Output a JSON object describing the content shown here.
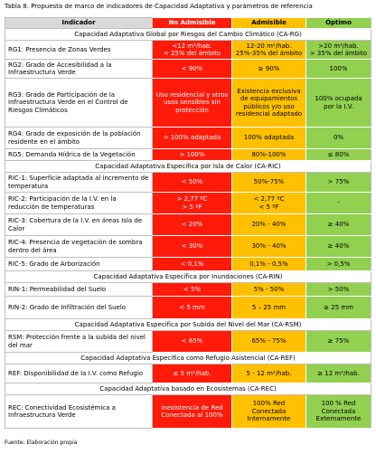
{
  "caption": "Tabla 8. Propuesta de marco de indicadores de Capacidad Adaptativa y parámetros de referencia",
  "table": {
    "header": [
      "Indicador",
      "No Admisible",
      "Admisible",
      "Óptimo"
    ],
    "sections": [
      {
        "title": "Capacidad Adaptativa Global por Riesgos del Cambio Climático (CA-RG)",
        "rows": [
          [
            "RG1: Presencia de Zonas Verdes",
            "<12 m²/hab.\n< 25% del ámbito",
            "12-20 m²/hab.\n25%-35% del ámbito",
            ">20 m²/hab.\n> 35% del ámbito"
          ],
          [
            "RG2: Grado de Accesibilidad a la Infraestructura Verde",
            "< 90%",
            "≥ 90%",
            "100%"
          ],
          [
            "RG3: Grado de Participación de la Infraestructura Verde en el Control de Riesgos Climáticos",
            "Uso residencial y otros usos sensibles sin protección",
            "Existencia exclusiva de equipamientos públicos y/o uso residencial adaptado",
            "100% ocupada por la I.V."
          ],
          [
            "RG4: Grado de exposición de la población residente en el ámbito",
            "> 100% adaptada",
            "100% adaptada",
            "0%"
          ],
          [
            "RG5: Demanda Hídrica de la Vegetación",
            "> 100%",
            "80%-100%",
            "≤ 80%"
          ]
        ]
      },
      {
        "title": "Capacidad Adaptativa Específica por Isla de Calor (CA-RIC)",
        "rows": [
          [
            "RIC-1: Superficie adaptada al incremento de temperatura",
            "< 50%",
            "50%-75%",
            "> 75%"
          ],
          [
            "RIC-2: Participación de la I.V. en la reducción de temperaturas",
            "> 2,77 ºC\n> 5 ºF",
            "< 2,77 ºC\n< 5 ºF",
            "-"
          ],
          [
            "RIC-3: Cobertura de la I.V. en áreas Isla de Calor",
            "< 20%",
            "20% - 40%",
            "≥ 40%"
          ],
          [
            "RIC-4: Presencia de vegetación de sombra dentro del área",
            "< 30%",
            "30% - 40%",
            "≥ 40%"
          ],
          [
            "RIC-5: Grado de Arborización",
            "< 0,1%",
            "0,1% - 0,5%",
            "> 0,5%"
          ]
        ]
      },
      {
        "title": "Capacidad Adaptativa Específica por Inundaciones (CA-RIN)",
        "rows": [
          [
            "RIN-1: Permeabilidad del Suelo",
            "< 5%",
            "5% - 50%",
            "> 50%"
          ],
          [
            "RIN-2: Grado de Infiltración del Suelo",
            "< 5 mm",
            "5 – 25 mm",
            "≥ 25 mm"
          ]
        ]
      },
      {
        "title": "Capacidad Adaptativa Específica por Subida del Nivel del Mar (CA-RSM)",
        "rows": [
          [
            "RSM: Protección frente a la subida del nivel del mar",
            "< 65%",
            "65% - 75%",
            "≥ 75%"
          ]
        ]
      },
      {
        "title": "Capacidad Adaptativa Específica como Refugio Asistencial (CA-REF)",
        "rows": [
          [
            "REF: Disponibilidad de la I.V. como Refugio",
            "≤ 5 m²/hab.",
            "5 - 12 m²/hab.",
            "≥ 12 m²/hab."
          ]
        ]
      },
      {
        "title": "Capacidad Adaptativa basado en Ecosistemas (CA-REC)",
        "rows": [
          [
            "REC: Conectividad Ecosistémica a Infraestructura Verde",
            "Inexistencia de Red Conectada al 100%",
            "100% Red Conectada Internamente",
            "100 % Red Conectada Externamente"
          ]
        ]
      }
    ]
  },
  "footer": "Fuente: Elaboración propia"
}
